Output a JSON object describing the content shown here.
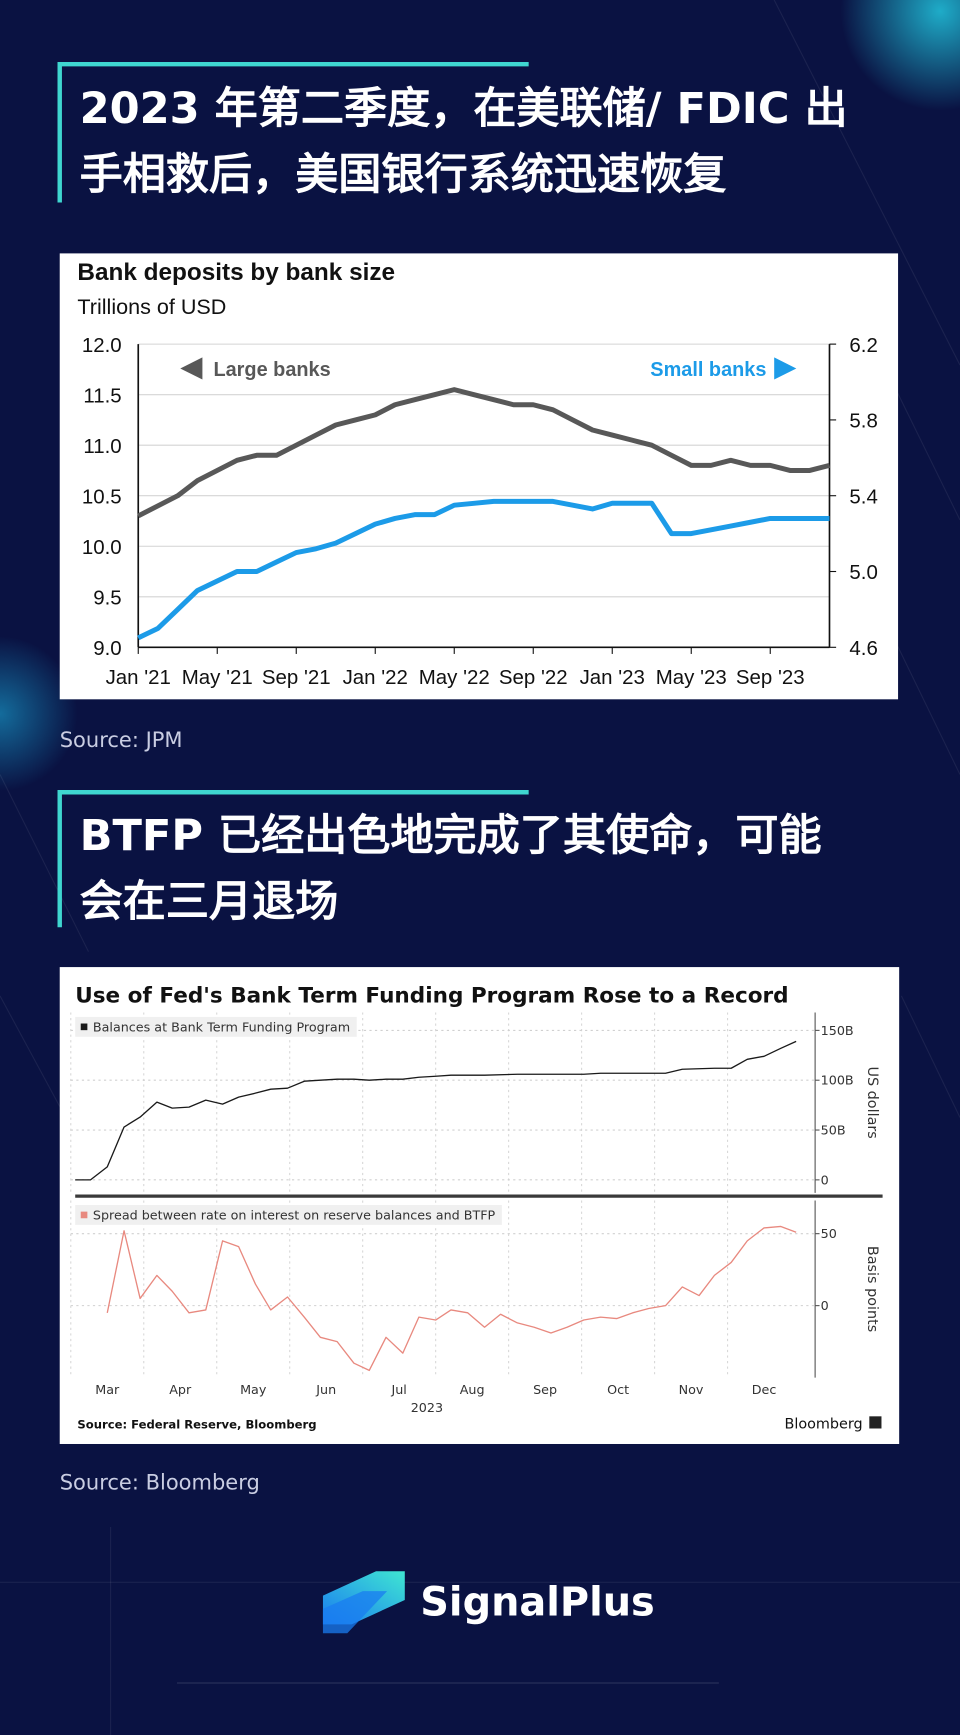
{
  "sections": [
    {
      "heading": [
        "2023 年第二季度，在美联储/ FDIC 出",
        "手相救后，美国银行系统迅速恢复"
      ],
      "source": "Source: JPM"
    },
    {
      "heading": [
        "BTFP 已经出色地完成了其使命，可能",
        "会在三月退场"
      ],
      "source": "Source: Bloomberg"
    }
  ],
  "brand": "SignalPlus",
  "chart_data": [
    {
      "type": "line",
      "title": "Bank deposits by bank size",
      "subtitle": "Trillions of USD",
      "x": [
        "2021-01",
        "2021-02",
        "2021-03",
        "2021-04",
        "2021-05",
        "2021-06",
        "2021-07",
        "2021-08",
        "2021-09",
        "2021-10",
        "2021-11",
        "2021-12",
        "2022-01",
        "2022-02",
        "2022-03",
        "2022-04",
        "2022-05",
        "2022-06",
        "2022-07",
        "2022-08",
        "2022-09",
        "2022-10",
        "2022-11",
        "2022-12",
        "2023-01",
        "2023-02",
        "2023-03",
        "2023-04",
        "2023-05",
        "2023-06",
        "2023-07",
        "2023-08",
        "2023-09",
        "2023-10",
        "2023-11",
        "2023-12"
      ],
      "series": [
        {
          "name": "Large banks",
          "color": "#585858",
          "values": [
            10.3,
            10.4,
            10.5,
            10.65,
            10.75,
            10.85,
            10.9,
            10.9,
            11.0,
            11.1,
            11.2,
            11.25,
            11.3,
            11.4,
            11.45,
            11.5,
            11.55,
            11.5,
            11.45,
            11.4,
            11.4,
            11.35,
            11.25,
            11.15,
            11.1,
            11.05,
            11.0,
            10.9,
            10.8,
            10.8,
            10.85,
            10.8,
            10.8,
            10.75,
            10.75,
            10.8
          ]
        },
        {
          "name": "Small banks",
          "color": "#1c9be8",
          "axis": "y2",
          "values": [
            4.65,
            4.7,
            4.8,
            4.9,
            4.95,
            5.0,
            5.0,
            5.05,
            5.1,
            5.12,
            5.15,
            5.2,
            5.25,
            5.28,
            5.3,
            5.3,
            5.35,
            5.36,
            5.37,
            5.37,
            5.37,
            5.37,
            5.35,
            5.33,
            5.36,
            5.36,
            5.36,
            5.2,
            5.2,
            5.22,
            5.24,
            5.26,
            5.28,
            5.28,
            5.28,
            5.28
          ]
        }
      ],
      "xlim": [
        "2021-01",
        "2023-12"
      ],
      "xticks": [
        {
          "value": "2021-01",
          "label": "Jan '21"
        },
        {
          "value": "2021-05",
          "label": "May '21"
        },
        {
          "value": "2021-09",
          "label": "Sep '21"
        },
        {
          "value": "2022-01",
          "label": "Jan '22"
        },
        {
          "value": "2022-05",
          "label": "May '22"
        },
        {
          "value": "2022-09",
          "label": "Sep '22"
        },
        {
          "value": "2023-01",
          "label": "Jan '23"
        },
        {
          "value": "2023-05",
          "label": "May '23"
        },
        {
          "value": "2023-09",
          "label": "Sep '23"
        }
      ],
      "ylim": [
        9,
        12
      ],
      "yticks": [
        {
          "value": 9,
          "label": "9.0"
        },
        9.5,
        {
          "value": 10,
          "label": "10.0"
        },
        10.5,
        {
          "value": 11,
          "label": "11.0"
        },
        11.5,
        {
          "value": 12,
          "label": "12.0"
        }
      ],
      "y2lim": [
        4.6,
        6.2
      ],
      "y2ticks": [
        4.6,
        {
          "value": 5,
          "label": "5.0"
        },
        5.4,
        5.8,
        6.2
      ],
      "grid": true
    },
    {
      "type": "line",
      "title": "Use of Fed's Bank Term Funding Program Rose to a Record",
      "y_label": "US dollars",
      "x": [
        3.06,
        3.27,
        3.5,
        3.73,
        3.95,
        4.18,
        4.39,
        4.62,
        4.85,
        5.08,
        5.3,
        5.53,
        5.74,
        5.97,
        6.2,
        6.42,
        6.65,
        6.88,
        7.09,
        7.32,
        7.55,
        7.77,
        8.0,
        8.21,
        8.67,
        9.12,
        9.58,
        10.03,
        10.26,
        10.7,
        11.15,
        11.38,
        11.82,
        12.05,
        12.27,
        12.5,
        12.73,
        12.94
      ],
      "series": [
        {
          "name": "Balances at Bank Term Funding Program",
          "color": "#1a1a1a",
          "values": [
            0,
            0,
            13,
            53,
            63,
            78,
            72,
            73,
            80,
            76,
            83,
            87,
            91,
            92,
            99,
            100,
            101,
            101,
            100,
            101,
            101,
            103,
            104,
            105,
            105,
            106,
            106,
            106,
            107,
            107,
            107,
            111,
            112,
            112,
            121,
            124,
            132,
            139
          ]
        }
      ],
      "xlim": [
        3,
        13.2
      ],
      "ylim": [
        -13,
        168
      ],
      "yticks": [
        0,
        {
          "value": 50,
          "label": "50B"
        },
        {
          "value": 100,
          "label": "100B"
        },
        {
          "value": 150,
          "label": "150B"
        }
      ],
      "grid": true
    },
    {
      "type": "line",
      "y_label": "Basis points",
      "x_caption": "2023",
      "footer_source": "Source: Federal Reserve, Bloomberg",
      "footer_brand": "Bloomberg",
      "x": [
        3.5,
        3.73,
        3.95,
        4.18,
        4.39,
        4.62,
        4.85,
        5.08,
        5.3,
        5.53,
        5.74,
        5.97,
        6.2,
        6.42,
        6.65,
        6.88,
        7.09,
        7.32,
        7.55,
        7.77,
        8.0,
        8.21,
        8.44,
        8.67,
        8.89,
        9.12,
        9.35,
        9.58,
        9.8,
        10.03,
        10.26,
        10.48,
        10.7,
        10.92,
        11.15,
        11.38,
        11.61,
        11.82,
        12.05,
        12.27,
        12.5,
        12.73,
        12.94
      ],
      "series": [
        {
          "name": "Spread between rate on interest on reserve balances and BTFP",
          "color": "#e8897f",
          "values": [
            -5,
            52,
            5,
            21,
            10,
            -5,
            -3,
            45,
            41,
            15,
            -3,
            6,
            -8,
            -22,
            -25,
            -40,
            -45,
            -22,
            -33,
            -8,
            -10,
            -3,
            -5,
            -15,
            -6,
            -12,
            -15,
            -19,
            -15,
            -10,
            -8,
            -9,
            -5,
            -2,
            0,
            13,
            7,
            21,
            30,
            45,
            54,
            55,
            51
          ]
        }
      ],
      "xlim": [
        3,
        13.2
      ],
      "xticks": [
        {
          "value": 3,
          "label": "Mar"
        },
        {
          "value": 4,
          "label": "Apr"
        },
        {
          "value": 5,
          "label": "May"
        },
        {
          "value": 6,
          "label": "Jun"
        },
        {
          "value": 7,
          "label": "Jul"
        },
        {
          "value": 8,
          "label": "Aug"
        },
        {
          "value": 9,
          "label": "Sep"
        },
        {
          "value": 10,
          "label": "Oct"
        },
        {
          "value": 11,
          "label": "Nov"
        },
        {
          "value": 12,
          "label": "Dec"
        }
      ],
      "ylim": [
        -50,
        73
      ],
      "yticks": [
        0,
        50
      ],
      "grid": true
    }
  ]
}
